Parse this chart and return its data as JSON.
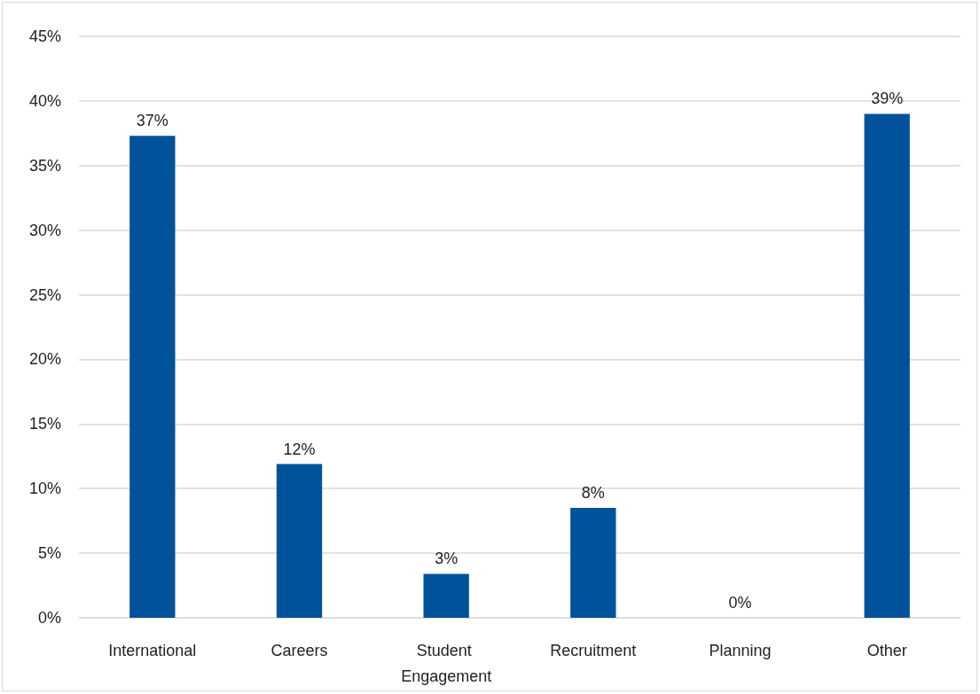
{
  "chart_data": {
    "type": "bar",
    "categories": [
      "International",
      "Careers",
      "Student Engagement",
      "Recruitment",
      "Planning",
      "Other"
    ],
    "values": [
      37.3,
      11.9,
      3.4,
      8.5,
      0,
      39
    ],
    "value_labels": [
      "37%",
      "12%",
      "3%",
      "8%",
      "0%",
      "39%"
    ],
    "color": "#00539b",
    "ylim": [
      0,
      45
    ],
    "yticks": [
      {
        "value": 0,
        "label": "0%"
      },
      {
        "value": 5,
        "label": "5%"
      },
      {
        "value": 10,
        "label": "10%"
      },
      {
        "value": 15,
        "label": "15%"
      },
      {
        "value": 20,
        "label": "20%"
      },
      {
        "value": 25,
        "label": "25%"
      },
      {
        "value": 30,
        "label": "30%"
      },
      {
        "value": 35,
        "label": "35%"
      },
      {
        "value": 40,
        "label": "40%"
      },
      {
        "value": 45,
        "label": "45%"
      }
    ],
    "grid": "y"
  }
}
